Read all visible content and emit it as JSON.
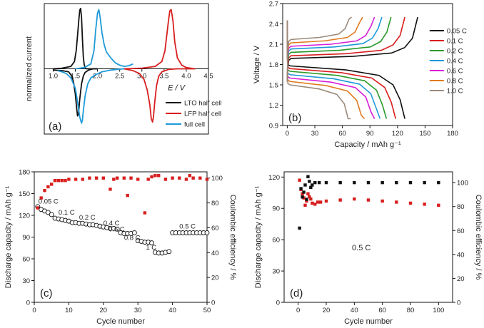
{
  "chart_data": [
    {
      "id": "a",
      "type": "line",
      "panel_label": "(a)",
      "xlabel": "E / V",
      "ylabel": "normalized current",
      "xlim": [
        0.8,
        4.5
      ],
      "ylim": [
        -1.08,
        1.08
      ],
      "xticks": [
        1.0,
        1.5,
        2.0,
        2.5,
        3.0,
        3.5,
        4.0,
        4.5
      ],
      "xtick_labels": [
        "1.0",
        "1.5",
        "2.0",
        "2.5",
        "3.0",
        "3.5",
        "4.0",
        "4.5"
      ],
      "y_ticks_shown": false,
      "legend_position": "bottom-right",
      "series": [
        {
          "name": "LTO half cell",
          "color": "#111111",
          "x": [
            1.0,
            1.2,
            1.4,
            1.48,
            1.52,
            1.55,
            1.58,
            1.6,
            1.62,
            1.64,
            1.66,
            1.68,
            1.7,
            1.72,
            1.75,
            1.8,
            1.9,
            2.0
          ],
          "y": [
            0,
            0.01,
            0.04,
            0.12,
            0.3,
            0.55,
            0.82,
            0.97,
            1.0,
            0.85,
            0.5,
            0.2,
            0.07,
            0.02,
            0,
            0,
            0,
            0
          ],
          "x2": [
            2.0,
            1.9,
            1.8,
            1.72,
            1.68,
            1.64,
            1.6,
            1.57,
            1.55,
            1.53,
            1.5,
            1.46,
            1.42,
            1.35,
            1.2,
            1.0
          ],
          "y2": [
            0,
            0,
            -0.02,
            -0.06,
            -0.12,
            -0.25,
            -0.5,
            -0.75,
            -0.78,
            -0.65,
            -0.42,
            -0.22,
            -0.12,
            -0.05,
            -0.03,
            -0.02
          ]
        },
        {
          "name": "LFP half cell",
          "color": "#d81e1e",
          "x": [
            2.6,
            3.0,
            3.3,
            3.45,
            3.52,
            3.56,
            3.6,
            3.63,
            3.66,
            3.7,
            3.74,
            3.8,
            3.9,
            4.0,
            4.1,
            4.2
          ],
          "y": [
            0,
            0.01,
            0.04,
            0.12,
            0.3,
            0.55,
            0.8,
            0.96,
            0.98,
            0.8,
            0.45,
            0.18,
            0.06,
            0.02,
            0.01,
            0
          ],
          "x2": [
            4.2,
            3.8,
            3.6,
            3.45,
            3.38,
            3.33,
            3.29,
            3.26,
            3.24,
            3.21,
            3.18,
            3.12,
            3.05,
            2.95,
            2.8,
            2.6
          ],
          "y2": [
            0,
            0,
            -0.01,
            -0.05,
            -0.12,
            -0.28,
            -0.55,
            -0.8,
            -0.88,
            -0.82,
            -0.6,
            -0.35,
            -0.18,
            -0.08,
            -0.03,
            0
          ]
        },
        {
          "name": "full cell",
          "color": "#1e9ad8",
          "x": [
            1.5,
            1.7,
            1.85,
            1.92,
            1.96,
            2.0,
            2.03,
            2.06,
            2.1,
            2.15,
            2.2,
            2.3,
            2.4,
            2.5,
            2.6,
            2.7,
            2.8
          ],
          "y": [
            0,
            0.02,
            0.08,
            0.3,
            0.65,
            0.92,
            0.98,
            0.85,
            0.6,
            0.4,
            0.28,
            0.18,
            0.1,
            0.06,
            0.04,
            0.05,
            0.08
          ],
          "x2": [
            2.6,
            2.3,
            2.1,
            1.95,
            1.85,
            1.78,
            1.72,
            1.68,
            1.66,
            1.64,
            1.6,
            1.55,
            1.5,
            1.4,
            1.3,
            1.2,
            1.1
          ],
          "y2": [
            0,
            -0.02,
            -0.05,
            -0.1,
            -0.15,
            -0.25,
            -0.45,
            -0.7,
            -0.85,
            -0.9,
            -0.8,
            -0.55,
            -0.32,
            -0.15,
            -0.08,
            -0.05,
            -0.03
          ]
        }
      ]
    },
    {
      "id": "b",
      "type": "line",
      "panel_label": "(b)",
      "xlabel": "Capacity / mAh g⁻¹",
      "ylabel": "Voltage / V",
      "xlim": [
        -5,
        180
      ],
      "ylim": [
        0.9,
        2.7
      ],
      "xticks": [
        0,
        30,
        60,
        90,
        120,
        150,
        180
      ],
      "yticks": [
        0.9,
        1.2,
        1.5,
        1.8,
        2.1,
        2.4,
        2.7
      ],
      "xtick_labels": [
        "0",
        "30",
        "60",
        "90",
        "120",
        "150",
        "180"
      ],
      "ytick_labels": [
        "0.9",
        "1.2",
        "1.5",
        "1.8",
        "2.1",
        "2.4",
        "2.7"
      ],
      "legend_position": "right",
      "series": [
        {
          "name": "0.05 C",
          "color": "#111111",
          "charge_end": 142,
          "discharge_end": 128,
          "charge_plateau": 1.89,
          "discharge_plateau": 1.78
        },
        {
          "name": "0.1 C",
          "color": "#d81e1e",
          "charge_end": 128,
          "discharge_end": 118,
          "charge_plateau": 1.93,
          "discharge_plateau": 1.74
        },
        {
          "name": "0.2 C",
          "color": "#2a9a2a",
          "charge_end": 113,
          "discharge_end": 108,
          "charge_plateau": 1.98,
          "discharge_plateau": 1.7
        },
        {
          "name": "0.4 C",
          "color": "#1e9ad8",
          "charge_end": 103,
          "discharge_end": 101,
          "charge_plateau": 2.03,
          "discharge_plateau": 1.65
        },
        {
          "name": "0.6 C",
          "color": "#d81ed8",
          "charge_end": 95,
          "discharge_end": 95,
          "charge_plateau": 2.07,
          "discharge_plateau": 1.6
        },
        {
          "name": "0.8 C",
          "color": "#e07a1e",
          "charge_end": 82,
          "discharge_end": 84,
          "charge_plateau": 2.12,
          "discharge_plateau": 1.55
        },
        {
          "name": "1.0 C",
          "color": "#9a8a7a",
          "charge_end": 70,
          "discharge_end": 69,
          "charge_plateau": 2.17,
          "discharge_plateau": 1.5
        }
      ]
    },
    {
      "id": "c",
      "type": "scatter",
      "panel_label": "(c)",
      "xlabel": "Cycle number",
      "ylabel": "Discharge capacity / mAh g⁻¹",
      "y2label": "Coulombic efficiency / %",
      "xlim": [
        0,
        50
      ],
      "ylim": [
        0,
        180
      ],
      "y2lim": [
        0,
        105
      ],
      "xticks": [
        0,
        10,
        20,
        30,
        40,
        50
      ],
      "yticks": [
        0,
        30,
        60,
        90,
        120,
        150,
        180
      ],
      "y2ticks": [
        0,
        20,
        40,
        60,
        80,
        100
      ],
      "xtick_labels": [
        "0",
        "10",
        "20",
        "30",
        "40",
        "50"
      ],
      "ytick_labels": [
        "0",
        "30",
        "60",
        "90",
        "120",
        "150",
        "180"
      ],
      "y2tick_labels": [
        "0",
        "20",
        "40",
        "60",
        "80",
        "100"
      ],
      "annotations": [
        "0.05 C",
        "0.1 C",
        "0.2 C",
        "0.4 C",
        "0.6 C",
        "0.8 C",
        "1 C",
        "0.5 C"
      ],
      "series": [
        {
          "name": "Discharge capacity",
          "marker": "open-circle",
          "color": "#111111",
          "x": [
            1,
            2,
            3,
            4,
            5,
            6,
            7,
            8,
            9,
            10,
            11,
            12,
            13,
            14,
            15,
            16,
            17,
            18,
            19,
            20,
            21,
            22,
            23,
            24,
            25,
            26,
            27,
            28,
            29,
            30,
            31,
            32,
            33,
            34,
            35,
            36,
            37,
            38,
            39,
            40,
            41,
            42,
            43,
            44,
            45,
            46,
            47,
            48,
            49,
            50
          ],
          "y": [
            132,
            128,
            126,
            124,
            121,
            116,
            115,
            114,
            113,
            112,
            110,
            110,
            109,
            109,
            108,
            107,
            107,
            106,
            105,
            104,
            103,
            102,
            102,
            101,
            96,
            95,
            95,
            95,
            96,
            85,
            84,
            83,
            83,
            82,
            69,
            68,
            68,
            69,
            70,
            96,
            96,
            96,
            96,
            96,
            96,
            96,
            96,
            96,
            96,
            96
          ]
        },
        {
          "name": "Coulombic efficiency",
          "marker": "filled-square",
          "color": "#d81e1e",
          "x": [
            1,
            2,
            3,
            4,
            5,
            6,
            7,
            8,
            9,
            10,
            12,
            14,
            16,
            18,
            20,
            22,
            23,
            24,
            26,
            27,
            28,
            30,
            32,
            33,
            34,
            35,
            36,
            38,
            40,
            42,
            44,
            45,
            46,
            48,
            50
          ],
          "y": [
            76,
            84,
            90,
            93,
            95,
            98,
            98,
            98,
            98,
            99,
            99,
            99,
            100,
            100,
            100,
            91,
            99,
            100,
            100,
            86,
            100,
            99,
            72,
            99,
            101,
            102,
            102,
            99,
            100,
            100,
            99,
            102,
            100,
            100,
            99
          ]
        }
      ]
    },
    {
      "id": "d",
      "type": "scatter",
      "panel_label": "(d)",
      "xlabel": "Cycle number",
      "ylabel": "Discharge capacity / mAh g⁻¹",
      "y2label": "Coulombic efficiency / %",
      "xlim": [
        -10,
        110
      ],
      "ylim": [
        0,
        125
      ],
      "y2lim": [
        0,
        109
      ],
      "xticks": [
        0,
        20,
        40,
        60,
        80,
        100
      ],
      "yticks": [
        0,
        30,
        60,
        90,
        120
      ],
      "y2ticks": [
        0,
        20,
        40,
        60,
        80,
        100
      ],
      "xtick_labels": [
        "0",
        "20",
        "40",
        "60",
        "80",
        "100"
      ],
      "ytick_labels": [
        "0",
        "30",
        "60",
        "90",
        "120"
      ],
      "y2tick_labels": [
        "0",
        "20",
        "40",
        "60",
        "80",
        "100"
      ],
      "annotation": "0.5 C",
      "series": [
        {
          "name": "Discharge capacity",
          "marker": "filled-square",
          "color": "#d81e1e",
          "x": [
            1,
            2,
            3,
            4,
            5,
            6,
            7,
            8,
            9,
            10,
            12,
            14,
            16,
            20,
            30,
            40,
            50,
            60,
            70,
            80,
            90,
            100
          ],
          "y": [
            117,
            108,
            104,
            100,
            93,
            97,
            104,
            101,
            99,
            95,
            94,
            96,
            96,
            97,
            98,
            99,
            98,
            97,
            96,
            95,
            94,
            93
          ]
        },
        {
          "name": "Coulombic efficiency",
          "marker": "filled-square",
          "color": "#111111",
          "x": [
            1,
            2,
            3,
            4,
            5,
            6,
            7,
            8,
            9,
            10,
            12,
            15,
            20,
            30,
            40,
            50,
            60,
            70,
            80,
            90,
            100
          ],
          "y": [
            62,
            95,
            88,
            92,
            98,
            86,
            105,
            101,
            96,
            98,
            100,
            100,
            100,
            100,
            100,
            100,
            100,
            100,
            100,
            100,
            100
          ]
        }
      ]
    }
  ]
}
